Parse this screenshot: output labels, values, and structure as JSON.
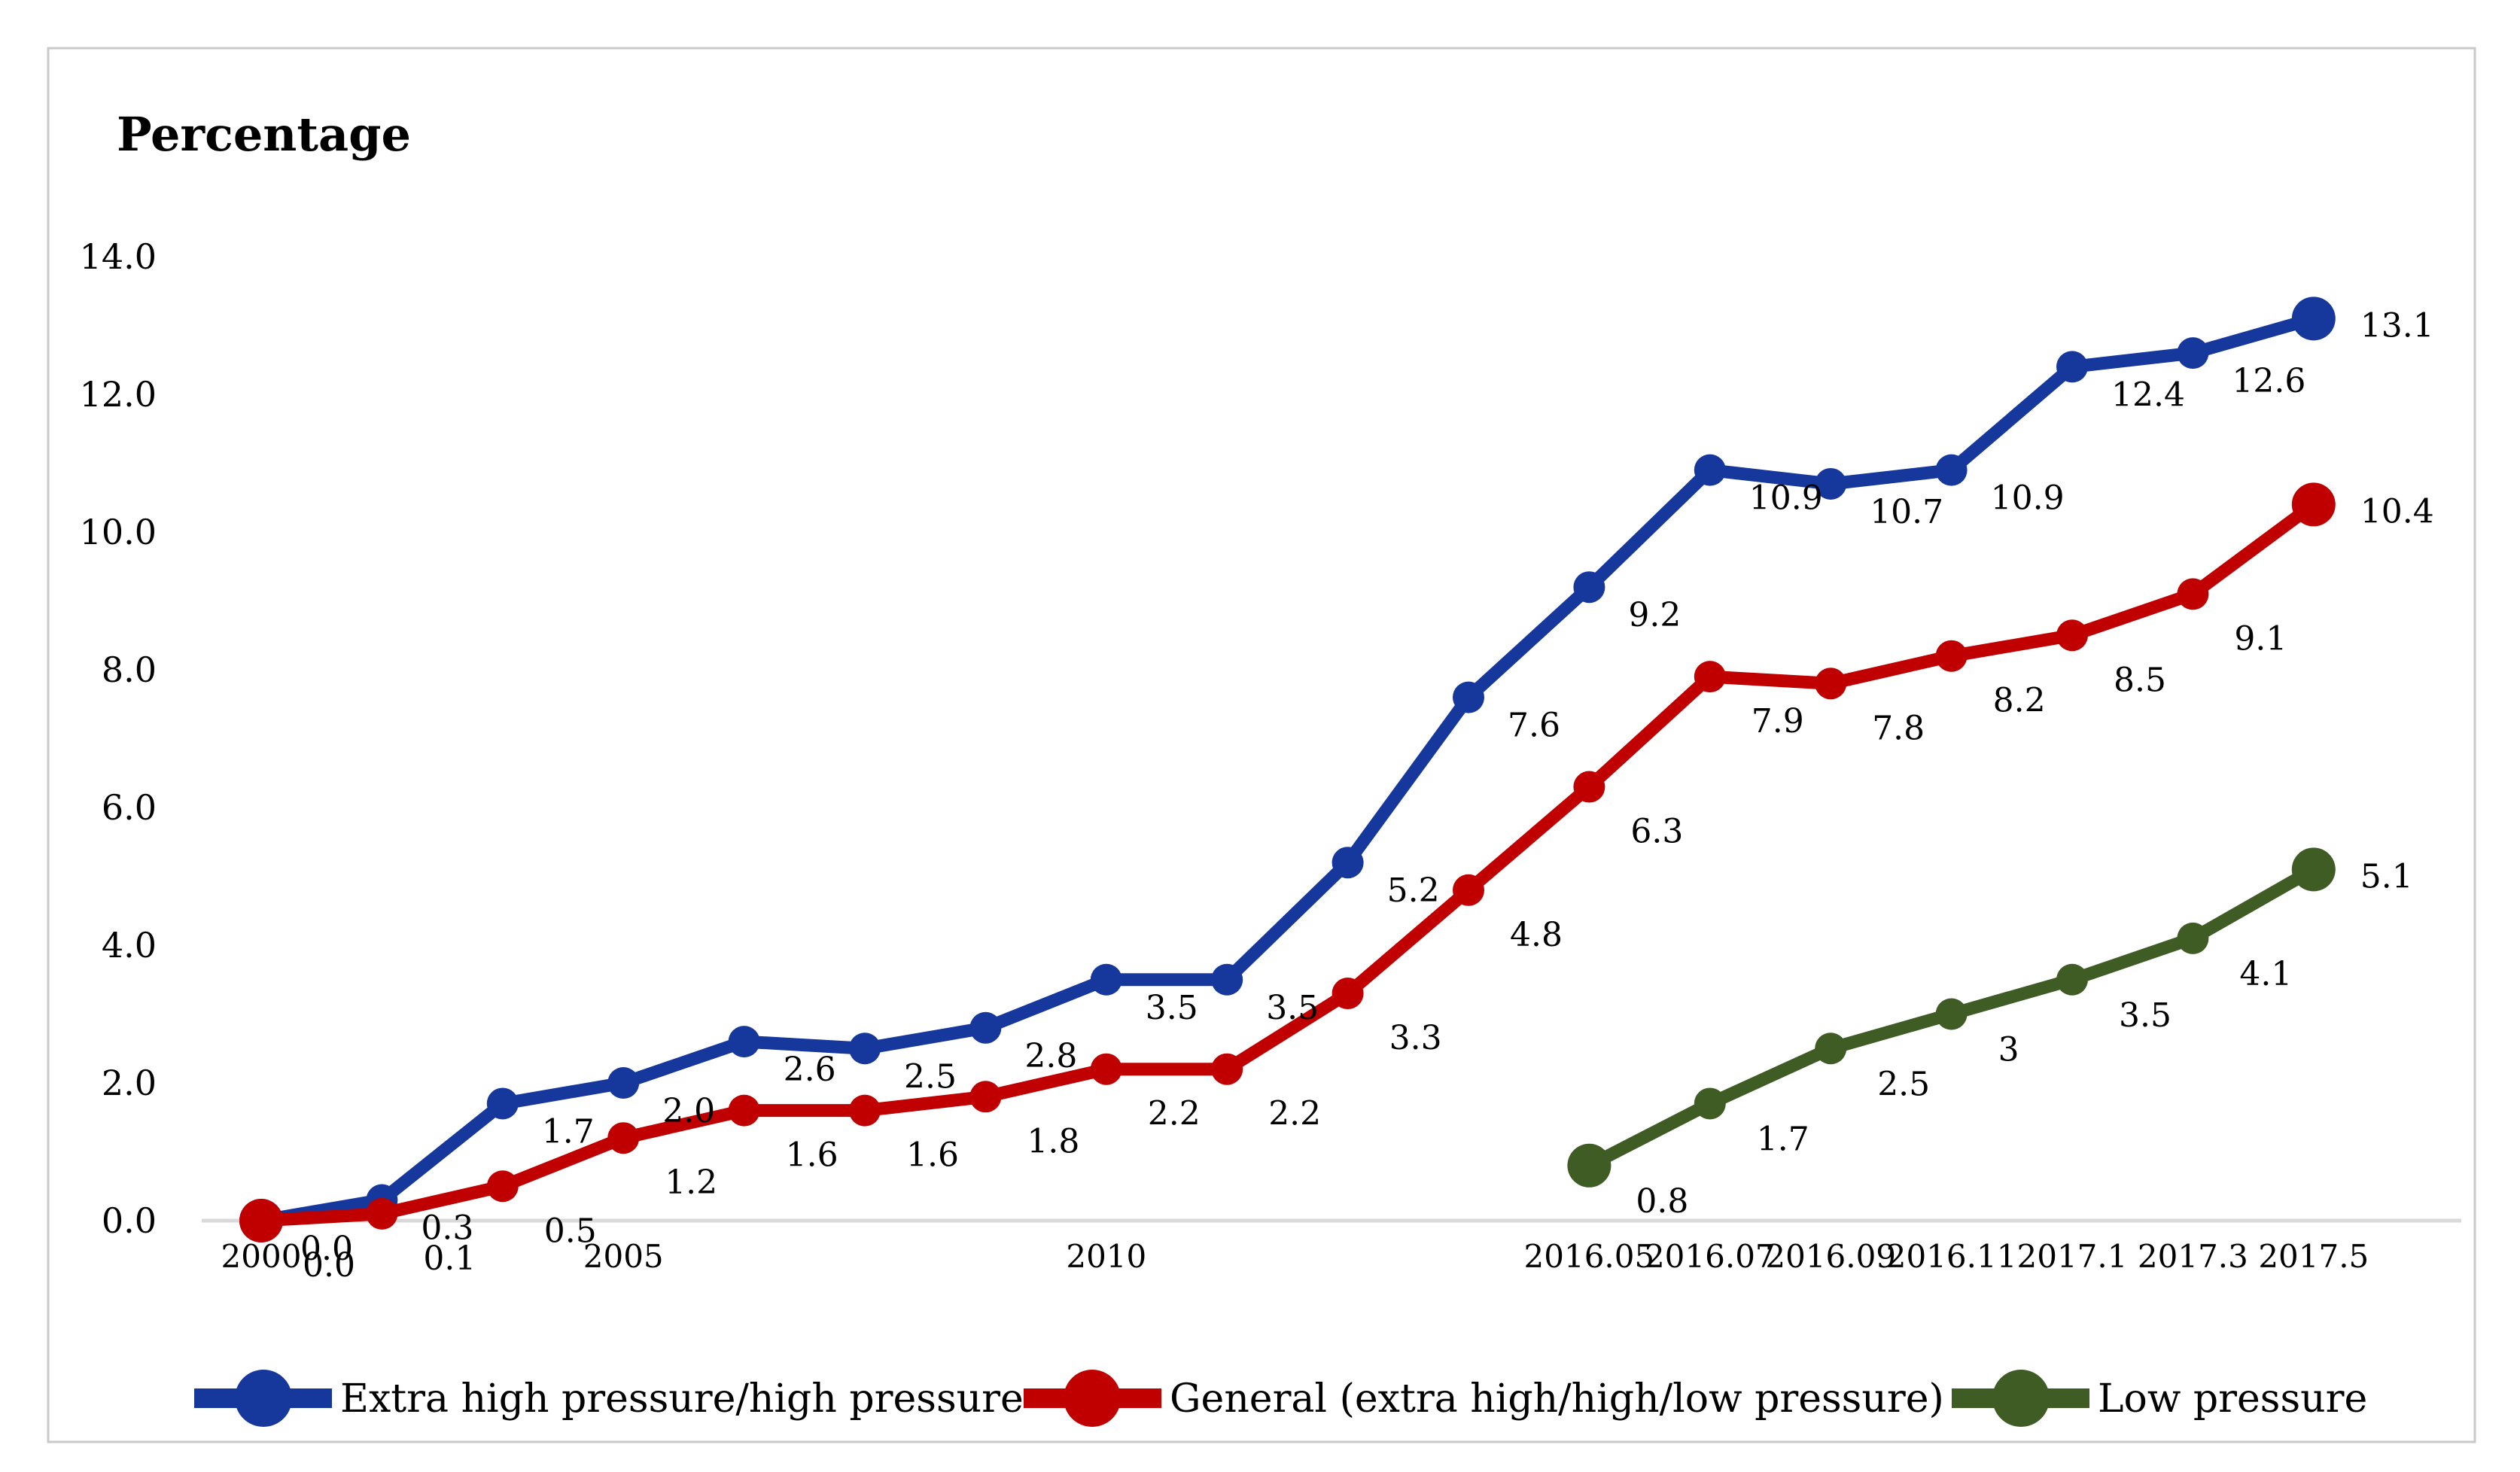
{
  "chart_data": {
    "type": "line",
    "title": "Percentage",
    "grid": false,
    "legend_position": "bottom",
    "ylim": [
      0,
      14
    ],
    "y_axis": {
      "ticks": [
        "14.0",
        "12.0",
        "10.0",
        "8.0",
        "6.0",
        "4.0",
        "2.0",
        "0.0"
      ]
    },
    "x_axis": {
      "categories": [
        "2000",
        "",
        "",
        "2005",
        "",
        "",
        "",
        "2010",
        "",
        "",
        "",
        "2016.05",
        "2016.07",
        "2016.09",
        "2016.11",
        "2017.1",
        "2017.3",
        "2017.5"
      ]
    },
    "series": [
      {
        "name": "Extra high pressure/high pressure",
        "color": "#16389D",
        "label_color": "#000000",
        "start_index": 0,
        "values": [
          0.0,
          0.3,
          1.7,
          2.0,
          2.6,
          2.5,
          2.8,
          3.5,
          3.5,
          5.2,
          7.6,
          9.2,
          10.9,
          10.7,
          10.9,
          12.4,
          12.6,
          13.1
        ],
        "labels": [
          "0.0",
          "0.3",
          "1.7",
          "2.0",
          "2.6",
          "2.5",
          "2.8",
          "3.5",
          "3.5",
          "5.2",
          "7.6",
          "9.2",
          "10.9",
          "10.7",
          "10.9",
          "12.4",
          "12.6",
          "13.1"
        ]
      },
      {
        "name": "General (extra high/high/low pressure)",
        "color": "#C00000",
        "label_color": "#4A4A4A",
        "start_index": 0,
        "values": [
          0.0,
          0.1,
          0.5,
          1.2,
          1.6,
          1.6,
          1.8,
          2.2,
          2.2,
          3.3,
          4.8,
          6.3,
          7.9,
          7.8,
          8.2,
          8.5,
          9.1,
          10.4
        ],
        "labels": [
          "0.0",
          "0.1",
          "0.5",
          "1.2",
          "1.6",
          "1.6",
          "1.8",
          "2.2",
          "2.2",
          "3.3",
          "4.8",
          "6.3",
          "7.9",
          "7.8",
          "8.2",
          "8.5",
          "9.1",
          "10.4"
        ]
      },
      {
        "name": "Low pressure",
        "color": "#3E5C24",
        "label_color": "#4A4A4A",
        "start_index": 11,
        "values": [
          0.8,
          1.7,
          2.5,
          3,
          3.5,
          4.1,
          5.1
        ],
        "labels": [
          "0.8",
          "1.7",
          "2.5",
          "3",
          "3.5",
          "4.1",
          "5.1"
        ]
      }
    ]
  },
  "colors": {
    "axis_line": "#D9D9D9",
    "border": "#C9C9C9",
    "background": "#FFFFFF",
    "tick_text": "#000000"
  }
}
